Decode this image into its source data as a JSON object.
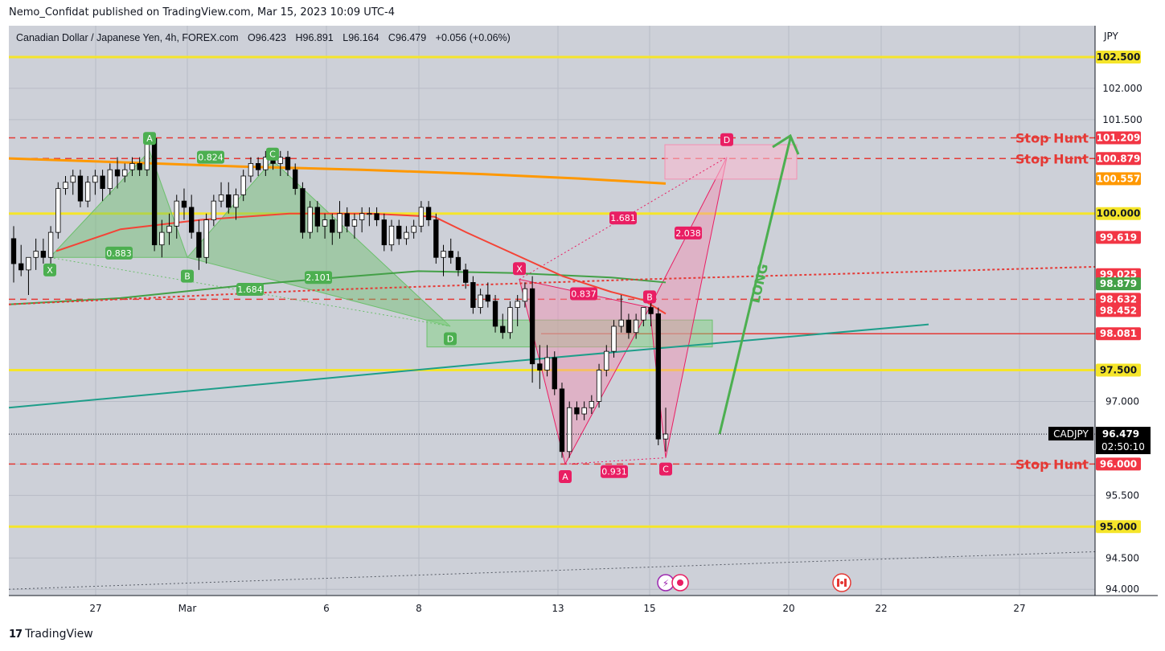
{
  "caption": "Nemo_Confidat published on TradingView.com, Mar 15, 2023 10:09 UTC-4",
  "legend": {
    "symbol": "Canadian Dollar / Japanese Yen, 4h, FOREX.com",
    "open": "O96.423",
    "high": "H96.891",
    "low": "L96.164",
    "close": "C96.479",
    "change": "+0.056 (+0.06%)"
  },
  "brand": "TradingView",
  "brand_mark": "17",
  "colors": {
    "background": "#cdd0d8",
    "up_candle": "#ffffff",
    "down_candle": "#000000",
    "yellow_level": "#f5e52a",
    "red_dash": "#e53935",
    "orange_ma": "#ff9800",
    "green_ma": "#43a047",
    "red_ma": "#f44336",
    "teal_trend": "#1e9e8a",
    "green_pattern": "#6cbf6c",
    "pink_pattern": "#e91e63"
  },
  "chart_data": {
    "type": "candlestick",
    "currency": "JPY",
    "ylim": [
      93.9,
      103.0
    ],
    "y_ticks": [
      "94.000",
      "94.500",
      "95.500",
      "96.000",
      "97.000",
      "101.500",
      "102.000"
    ],
    "x_ticks": [
      "27",
      "Mar",
      "6",
      "8",
      "13",
      "15",
      "20",
      "22",
      "27"
    ],
    "horizontal_levels": [
      {
        "price": 102.5,
        "label": "102.500",
        "style": "yellow"
      },
      {
        "price": 100.0,
        "label": "100.000",
        "style": "yellow"
      },
      {
        "price": 97.5,
        "label": "97.500",
        "style": "yellow"
      },
      {
        "price": 95.0,
        "label": "95.000",
        "style": "yellow"
      },
      {
        "price": 101.209,
        "label": "101.209",
        "style": "red-dash",
        "note": "Stop Hunt"
      },
      {
        "price": 100.879,
        "label": "100.879",
        "style": "red-dash",
        "note": "Stop Hunt"
      },
      {
        "price": 98.632,
        "label": "98.632",
        "style": "red-dash"
      },
      {
        "price": 96.0,
        "label": "96.000",
        "style": "red-dash",
        "note": "Stop Hunt"
      },
      {
        "price": 98.081,
        "label": "98.081",
        "style": "red-solid"
      }
    ],
    "price_labels": [
      {
        "price": 100.557,
        "label": "100.557",
        "color": "#ff9800"
      },
      {
        "price": 99.619,
        "label": "99.619",
        "color": "#f23645"
      },
      {
        "price": 99.025,
        "label": "99.025",
        "color": "#f23645"
      },
      {
        "price": 98.879,
        "label": "98.879",
        "color": "#43a047"
      },
      {
        "price": 98.452,
        "label": "98.452",
        "color": "#f23645"
      }
    ],
    "current": {
      "symbol": "CADJPY",
      "price": "96.479",
      "countdown": "02:50:10"
    },
    "stop_hunt_text": "Stop Hunt",
    "long_text": "LONG",
    "candles": [
      [
        99.6,
        99.8,
        98.9,
        99.2
      ],
      [
        99.2,
        99.5,
        99.0,
        99.1
      ],
      [
        99.1,
        99.3,
        98.7,
        99.3
      ],
      [
        99.3,
        99.6,
        99.1,
        99.4
      ],
      [
        99.4,
        99.6,
        99.2,
        99.3
      ],
      [
        99.3,
        99.8,
        99.1,
        99.7
      ],
      [
        99.7,
        100.5,
        99.6,
        100.4
      ],
      [
        100.4,
        100.6,
        100.3,
        100.5
      ],
      [
        100.5,
        100.7,
        100.3,
        100.6
      ],
      [
        100.6,
        100.7,
        100.1,
        100.2
      ],
      [
        100.2,
        100.6,
        100.1,
        100.5
      ],
      [
        100.5,
        100.7,
        100.3,
        100.6
      ],
      [
        100.6,
        100.7,
        100.2,
        100.4
      ],
      [
        100.4,
        100.8,
        100.3,
        100.7
      ],
      [
        100.7,
        100.9,
        100.4,
        100.6
      ],
      [
        100.6,
        100.8,
        100.5,
        100.7
      ],
      [
        100.7,
        100.9,
        100.6,
        100.8
      ],
      [
        100.8,
        100.9,
        100.6,
        100.7
      ],
      [
        100.7,
        101.3,
        100.6,
        101.2
      ],
      [
        101.2,
        101.3,
        99.4,
        99.5
      ],
      [
        99.5,
        99.9,
        99.3,
        99.7
      ],
      [
        99.7,
        100.0,
        99.5,
        99.8
      ],
      [
        99.8,
        100.3,
        99.6,
        100.2
      ],
      [
        100.2,
        100.4,
        99.9,
        100.1
      ],
      [
        100.1,
        100.3,
        99.6,
        99.7
      ],
      [
        99.7,
        99.9,
        99.1,
        99.3
      ],
      [
        99.3,
        100.0,
        99.2,
        99.9
      ],
      [
        99.9,
        100.3,
        99.8,
        100.2
      ],
      [
        100.2,
        100.5,
        100.1,
        100.3
      ],
      [
        100.3,
        100.5,
        100.0,
        100.1
      ],
      [
        100.1,
        100.4,
        99.9,
        100.3
      ],
      [
        100.3,
        100.7,
        100.2,
        100.6
      ],
      [
        100.6,
        100.9,
        100.5,
        100.8
      ],
      [
        100.8,
        100.9,
        100.6,
        100.7
      ],
      [
        100.7,
        101.0,
        100.6,
        100.9
      ],
      [
        100.9,
        101.0,
        100.7,
        100.8
      ],
      [
        100.8,
        101.0,
        100.6,
        100.9
      ],
      [
        100.9,
        101.0,
        100.6,
        100.7
      ],
      [
        100.7,
        100.8,
        100.3,
        100.4
      ],
      [
        100.4,
        100.5,
        99.6,
        99.7
      ],
      [
        99.7,
        100.2,
        99.6,
        100.1
      ],
      [
        100.1,
        100.2,
        99.7,
        99.8
      ],
      [
        99.8,
        100.0,
        99.6,
        99.9
      ],
      [
        99.9,
        100.0,
        99.5,
        99.7
      ],
      [
        99.7,
        100.2,
        99.6,
        100.0
      ],
      [
        100.0,
        100.1,
        99.7,
        99.8
      ],
      [
        99.8,
        100.0,
        99.6,
        99.9
      ],
      [
        99.9,
        100.1,
        99.7,
        100.0
      ],
      [
        100.0,
        100.1,
        99.8,
        100.0
      ],
      [
        100.0,
        100.1,
        99.8,
        99.9
      ],
      [
        99.9,
        100.0,
        99.4,
        99.5
      ],
      [
        99.5,
        99.9,
        99.4,
        99.8
      ],
      [
        99.8,
        99.9,
        99.5,
        99.6
      ],
      [
        99.6,
        99.8,
        99.5,
        99.7
      ],
      [
        99.7,
        99.9,
        99.6,
        99.8
      ],
      [
        99.8,
        100.2,
        99.7,
        100.1
      ],
      [
        100.1,
        100.2,
        99.8,
        99.9
      ],
      [
        99.9,
        100.0,
        99.2,
        99.3
      ],
      [
        99.3,
        99.5,
        99.0,
        99.4
      ],
      [
        99.4,
        99.6,
        99.2,
        99.3
      ],
      [
        99.3,
        99.4,
        99.0,
        99.1
      ],
      [
        99.1,
        99.2,
        98.8,
        98.9
      ],
      [
        98.9,
        99.0,
        98.4,
        98.5
      ],
      [
        98.5,
        98.8,
        98.4,
        98.7
      ],
      [
        98.7,
        98.9,
        98.5,
        98.6
      ],
      [
        98.6,
        98.7,
        98.1,
        98.2
      ],
      [
        98.2,
        98.4,
        98.0,
        98.1
      ],
      [
        98.1,
        98.6,
        98.0,
        98.5
      ],
      [
        98.5,
        98.7,
        98.2,
        98.6
      ],
      [
        98.6,
        98.9,
        98.5,
        98.8
      ],
      [
        98.8,
        99.0,
        97.3,
        97.6
      ],
      [
        97.6,
        97.9,
        97.2,
        97.5
      ],
      [
        97.5,
        97.9,
        97.4,
        97.7
      ],
      [
        97.7,
        97.8,
        97.1,
        97.2
      ],
      [
        97.2,
        97.3,
        96.1,
        96.2
      ],
      [
        96.2,
        97.0,
        96.1,
        96.9
      ],
      [
        96.9,
        97.0,
        96.7,
        96.8
      ],
      [
        96.8,
        97.0,
        96.7,
        96.9
      ],
      [
        96.9,
        97.1,
        96.8,
        97.0
      ],
      [
        97.0,
        97.6,
        96.9,
        97.5
      ],
      [
        97.5,
        97.9,
        97.4,
        97.8
      ],
      [
        97.8,
        98.3,
        97.7,
        98.2
      ],
      [
        98.2,
        98.7,
        98.1,
        98.3
      ],
      [
        98.3,
        98.4,
        98.0,
        98.1
      ],
      [
        98.1,
        98.4,
        98.0,
        98.3
      ],
      [
        98.3,
        98.5,
        98.2,
        98.5
      ],
      [
        98.5,
        98.6,
        98.2,
        98.4
      ],
      [
        98.4,
        98.5,
        96.3,
        96.4
      ],
      [
        96.4,
        96.9,
        96.2,
        96.48
      ]
    ],
    "harmonic_labels": [
      {
        "text": "X",
        "color": "green"
      },
      {
        "text": "A",
        "color": "green"
      },
      {
        "text": "B",
        "color": "green"
      },
      {
        "text": "C",
        "color": "green"
      },
      {
        "text": "D",
        "color": "green"
      },
      {
        "text": "X",
        "color": "pink"
      },
      {
        "text": "A",
        "color": "pink"
      },
      {
        "text": "B",
        "color": "pink"
      },
      {
        "text": "C",
        "color": "pink"
      },
      {
        "text": "D",
        "color": "pink"
      }
    ],
    "ratio_labels": [
      {
        "text": "0.824",
        "color": "green"
      },
      {
        "text": "0.883",
        "color": "green"
      },
      {
        "text": "1.684",
        "color": "green"
      },
      {
        "text": "2.101",
        "color": "green"
      },
      {
        "text": "1.681",
        "color": "pink"
      },
      {
        "text": "2.038",
        "color": "pink"
      },
      {
        "text": "0.837",
        "color": "pink"
      },
      {
        "text": "0.931",
        "color": "pink"
      }
    ]
  }
}
